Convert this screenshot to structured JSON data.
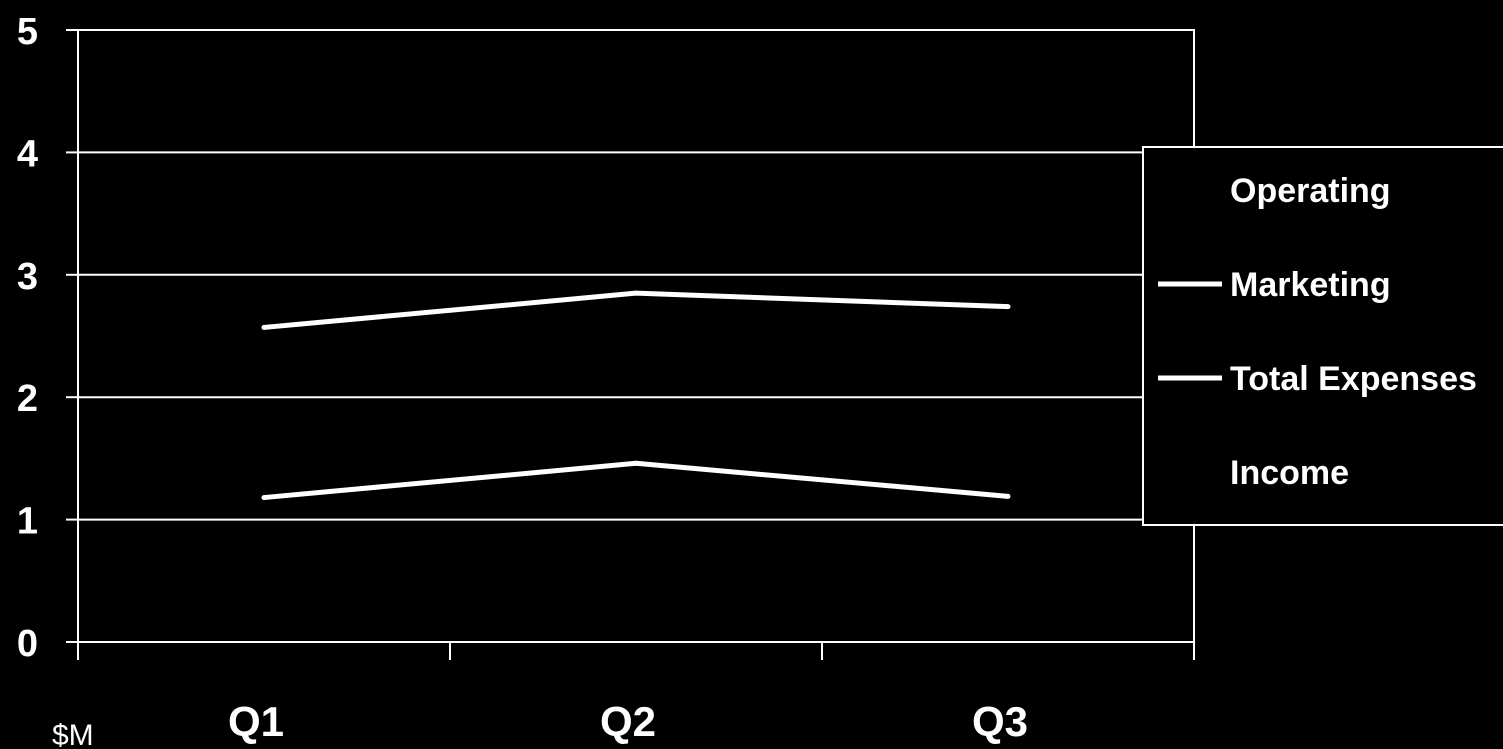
{
  "chart_data": {
    "type": "line",
    "categories": [
      "Q1",
      "Q2",
      "Q3"
    ],
    "series": [
      {
        "name": "Operating",
        "values": [
          null,
          null,
          null
        ],
        "color": "#000000"
      },
      {
        "name": "Marketing",
        "values": [
          2.57,
          2.85,
          2.74
        ],
        "color": "#ffffff"
      },
      {
        "name": "Total Expenses",
        "values": [
          1.18,
          1.46,
          1.19
        ],
        "color": "#ffffff"
      },
      {
        "name": "Income",
        "values": [
          null,
          null,
          null
        ],
        "color": "#000000"
      }
    ],
    "ylim": [
      0,
      5
    ],
    "yticks": [
      "0",
      "1",
      "2",
      "3",
      "4",
      "5"
    ],
    "ylabel": "$M",
    "grid": true,
    "legend_position": "right",
    "colors": {
      "background": "#000000",
      "foreground": "#ffffff"
    }
  }
}
